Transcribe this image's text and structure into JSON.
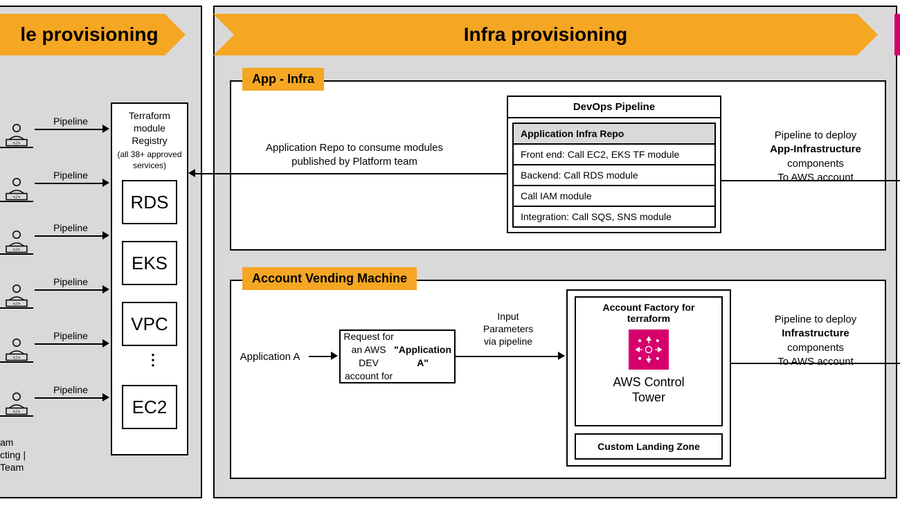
{
  "colors": {
    "banner": "#f5a623",
    "tag": "#f5a623",
    "panel_bg": "#d9d9d9",
    "control_tower": "#d6006c"
  },
  "left_panel": {
    "title": "le provisioning",
    "pipeline_label": "Pipeline",
    "registry_title": "Terraform\nmodule\nRegistry",
    "registry_sub": "(all 38+ approved\nservices)",
    "modules": [
      "RDS",
      "EKS",
      "VPC",
      "EC2"
    ],
    "team_caption": "am\ncting |\nTeam"
  },
  "right_panel": {
    "title": "Infra provisioning",
    "app_infra": {
      "tag": "App - Infra",
      "repo_text": "Application Repo to consume modules\npublished by Platform team",
      "pipeline_title": "DevOps Pipeline",
      "sub_header": "Application Infra Repo",
      "rows": [
        "Front end: Call EC2, EKS TF module",
        "Backend: Call RDS module",
        "Call IAM module",
        "Integration: Call SQS, SNS module"
      ],
      "deploy_text": "Pipeline to deploy\nApp-Infrastructure\ncomponents\nTo AWS account",
      "deploy_bold": "App-Infrastructure"
    },
    "avm": {
      "tag": "Account Vending Machine",
      "app_label": "Application A",
      "request_text": "Request for an AWS\nDEV account for\n\"Application A\"",
      "request_bold": "\"Application A\"",
      "input_text": "Input\nParameters\nvia pipeline",
      "aft_title": "Account Factory for\nterraform",
      "ct_label": "AWS Control\nTower",
      "clz_label": "Custom Landing Zone",
      "deploy_text": "Pipeline to deploy\nInfrastructure\ncomponents\nTo AWS account",
      "deploy_bold": "Infrastructure"
    }
  }
}
